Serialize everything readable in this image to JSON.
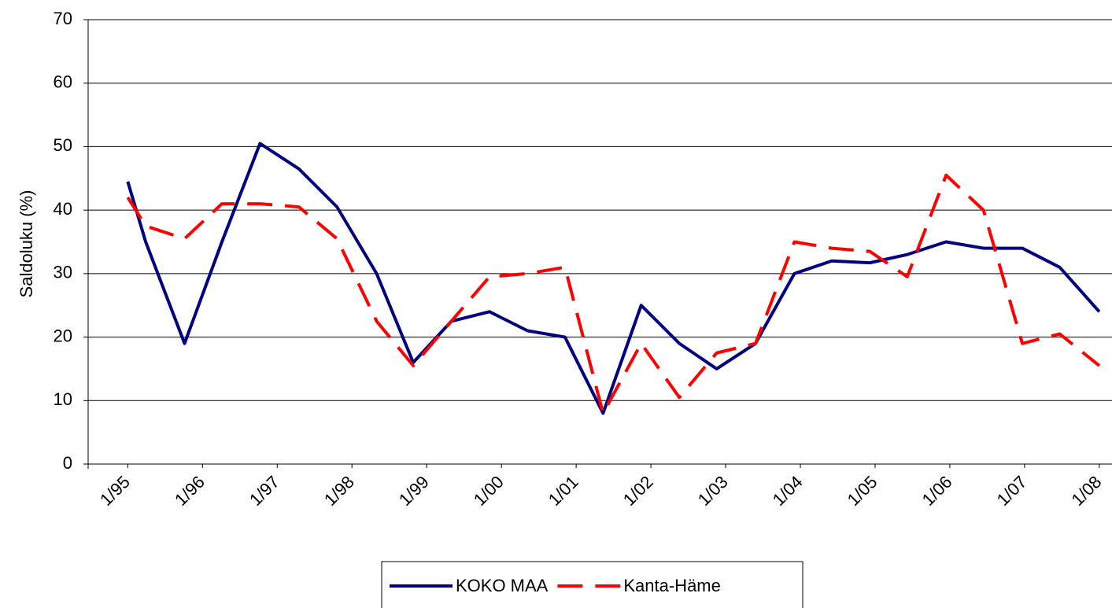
{
  "chart_data": {
    "type": "line",
    "y_label": "Saldoluku (%)",
    "x": [
      1995.0,
      1995.24,
      1995.76,
      1996.26,
      1996.77,
      1997.29,
      1997.8,
      1998.33,
      1998.82,
      1999.33,
      1999.84,
      2000.35,
      2000.85,
      2001.36,
      2001.87,
      2002.38,
      2002.88,
      2003.4,
      2003.92,
      2004.42,
      2004.93,
      2005.43,
      2005.95,
      2006.45,
      2006.97,
      2007.47,
      2008.0
    ],
    "series": [
      {
        "name": "KOKO MAA",
        "color": "#000080",
        "dashed": false,
        "values": [
          44.5,
          35,
          19,
          35,
          50.5,
          46.5,
          40.5,
          30,
          16,
          22.5,
          24,
          21,
          20,
          8,
          25,
          19,
          15,
          19,
          30,
          32,
          31.7,
          33,
          35,
          34,
          34,
          31,
          24
        ]
      },
      {
        "name": "Kanta-Häme",
        "color": "#ff0000",
        "dashed": true,
        "values": [
          42,
          37.5,
          35.5,
          41,
          41,
          40.5,
          35.5,
          22.5,
          15.5,
          22.5,
          29.5,
          30,
          31,
          8,
          19,
          10.5,
          17.5,
          19,
          35,
          34,
          33.5,
          29.5,
          45.5,
          40,
          19,
          20.5,
          15.5
        ]
      }
    ],
    "xlim": [
      1994.47,
      2008.17
    ],
    "xticks": [
      {
        "value": 1995,
        "label": "1/95"
      },
      {
        "value": 1996,
        "label": "1/96"
      },
      {
        "value": 1997,
        "label": "1/97"
      },
      {
        "value": 1998,
        "label": "1/98"
      },
      {
        "value": 1999,
        "label": "1/99"
      },
      {
        "value": 2000,
        "label": "1/00"
      },
      {
        "value": 2001,
        "label": "1/01"
      },
      {
        "value": 2002,
        "label": "1/02"
      },
      {
        "value": 2003,
        "label": "1/03"
      },
      {
        "value": 2004,
        "label": "1/04"
      },
      {
        "value": 2005,
        "label": "1/05"
      },
      {
        "value": 2006,
        "label": "1/06"
      },
      {
        "value": 2007,
        "label": "1/07"
      },
      {
        "value": 2008,
        "label": "1/08"
      }
    ],
    "ylim": [
      0,
      70
    ],
    "yticks": [
      0,
      10,
      20,
      30,
      40,
      50,
      60,
      70
    ],
    "grid": true,
    "legend": "bottom"
  }
}
